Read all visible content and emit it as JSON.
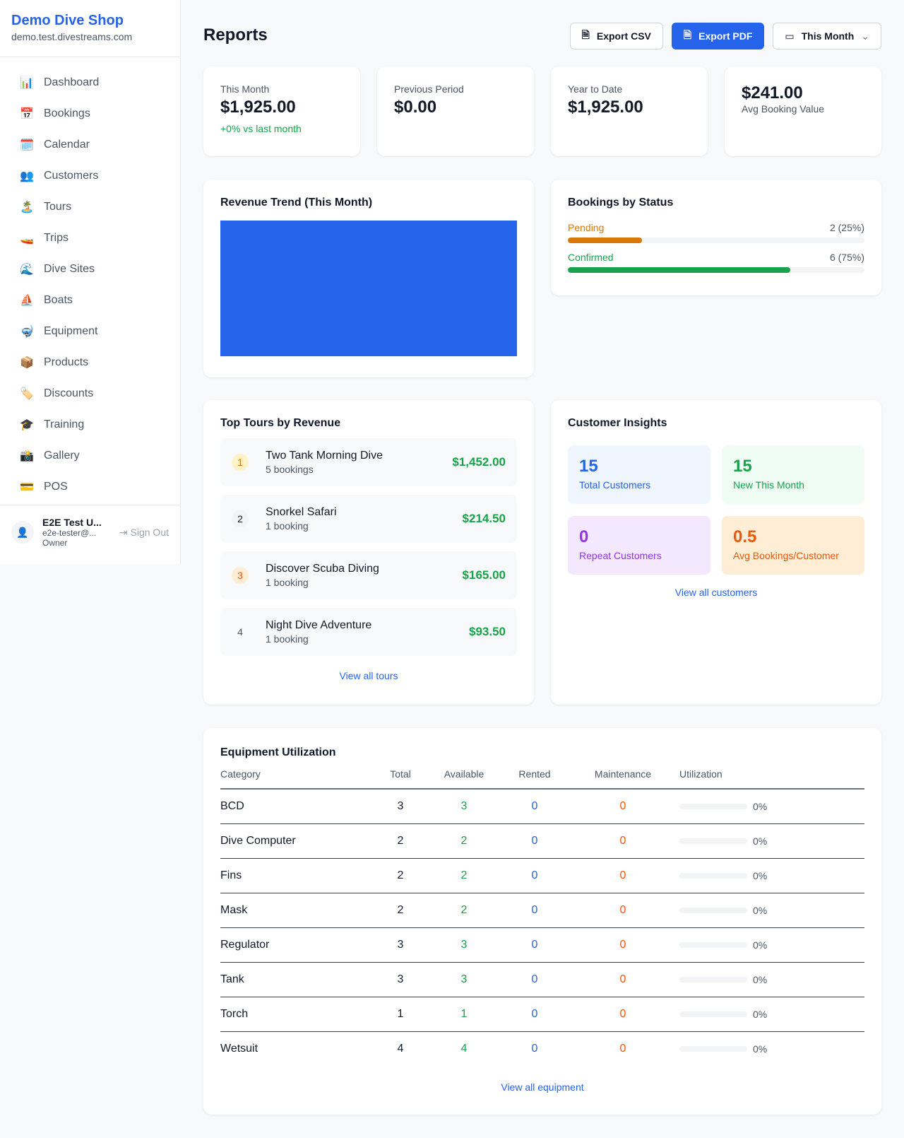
{
  "sidebar": {
    "shop_name": "Demo Dive Shop",
    "domain": "demo.test.divestreams.com",
    "items": [
      {
        "label": "Dashboard",
        "icon": "📊"
      },
      {
        "label": "Bookings",
        "icon": "📅"
      },
      {
        "label": "Calendar",
        "icon": "🗓️"
      },
      {
        "label": "Customers",
        "icon": "👥"
      },
      {
        "label": "Tours",
        "icon": "🏝️"
      },
      {
        "label": "Trips",
        "icon": "🚤"
      },
      {
        "label": "Dive Sites",
        "icon": "🌊"
      },
      {
        "label": "Boats",
        "icon": "⛵"
      },
      {
        "label": "Equipment",
        "icon": "🤿"
      },
      {
        "label": "Products",
        "icon": "📦"
      },
      {
        "label": "Discounts",
        "icon": "🏷️"
      },
      {
        "label": "Training",
        "icon": "🎓"
      },
      {
        "label": "Gallery",
        "icon": "📸"
      },
      {
        "label": "POS",
        "icon": "💳"
      }
    ],
    "user": {
      "name": "E2E Test U...",
      "email": "e2e-tester@...",
      "role": "Owner",
      "sign_out": "Sign Out"
    }
  },
  "header": {
    "title": "Reports",
    "export_csv": "Export CSV",
    "export_pdf": "Export PDF",
    "period": "This Month"
  },
  "stats": [
    {
      "label": "This Month",
      "value": "$1,925.00",
      "note": "+0% vs last month"
    },
    {
      "label": "Previous Period",
      "value": "$0.00"
    },
    {
      "label": "Year to Date",
      "value": "$1,925.00"
    },
    {
      "label": "Avg Booking Value",
      "value": "$241.00"
    }
  ],
  "revenue": {
    "title": "Revenue Trend (This Month)",
    "color": "#2563eb"
  },
  "bookings_status": {
    "title": "Bookings by Status",
    "items": [
      {
        "label": "Pending",
        "value": "2 (25%)",
        "percent": 25,
        "color": "#d97706"
      },
      {
        "label": "Confirmed",
        "value": "6 (75%)",
        "percent": 75,
        "color": "#16a34a"
      }
    ]
  },
  "top_tours": {
    "title": "Top Tours by Revenue",
    "link": "View all tours",
    "items": [
      {
        "rank": "1",
        "name": "Two Tank Morning Dive",
        "bookings": "5 bookings",
        "revenue": "$1,452.00"
      },
      {
        "rank": "2",
        "name": "Snorkel Safari",
        "bookings": "1 booking",
        "revenue": "$214.50"
      },
      {
        "rank": "3",
        "name": "Discover Scuba Diving",
        "bookings": "1 booking",
        "revenue": "$165.00"
      },
      {
        "rank": "4",
        "name": "Night Dive Adventure",
        "bookings": "1 booking",
        "revenue": "$93.50"
      }
    ]
  },
  "insights": {
    "title": "Customer Insights",
    "link": "View all customers",
    "tiles": [
      {
        "value": "15",
        "label": "Total Customers"
      },
      {
        "value": "15",
        "label": "New This Month"
      },
      {
        "value": "0",
        "label": "Repeat Customers"
      },
      {
        "value": "0.5",
        "label": "Avg Bookings/Customer"
      }
    ]
  },
  "equipment": {
    "title": "Equipment Utilization",
    "link": "View all equipment",
    "columns": [
      "Category",
      "Total",
      "Available",
      "Rented",
      "Maintenance",
      "Utilization"
    ],
    "rows": [
      [
        "BCD",
        "3",
        "3",
        "0",
        "0",
        "0%"
      ],
      [
        "Dive Computer",
        "2",
        "2",
        "0",
        "0",
        "0%"
      ],
      [
        "Fins",
        "2",
        "2",
        "0",
        "0",
        "0%"
      ],
      [
        "Mask",
        "2",
        "2",
        "0",
        "0",
        "0%"
      ],
      [
        "Regulator",
        "3",
        "3",
        "0",
        "0",
        "0%"
      ],
      [
        "Tank",
        "3",
        "3",
        "0",
        "0",
        "0%"
      ],
      [
        "Torch",
        "1",
        "1",
        "0",
        "0",
        "0%"
      ],
      [
        "Wetsuit",
        "4",
        "4",
        "0",
        "0",
        "0%"
      ]
    ]
  }
}
